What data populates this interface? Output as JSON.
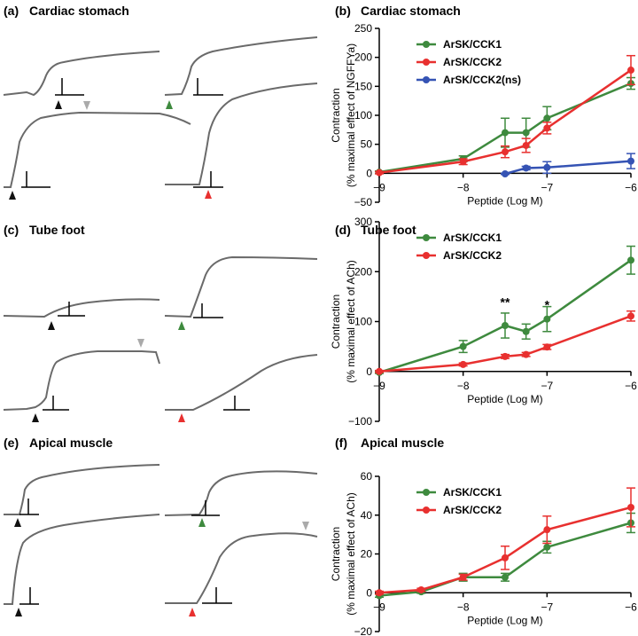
{
  "panels": {
    "a": {
      "letter": "(a)",
      "title": "Cardiac stomach"
    },
    "c": {
      "letter": "(c)",
      "title": "Tube foot"
    },
    "e": {
      "letter": "(e)",
      "title": "Apical muscle"
    }
  },
  "colors": {
    "ArSK/CCK1": "#3e8a3e",
    "ArSK/CCK2": "#e8302f",
    "ArSK/CCK2(ns)": "#3553b4",
    "control_arrow": "#111111",
    "washout_arrow": "#aaaaaa",
    "trace": "#6a6a6a"
  },
  "chart_data": [
    {
      "id": "b",
      "type": "line",
      "letter": "(b)",
      "title": "Cardiac stomach",
      "xlabel": "Peptide (Log M)",
      "ylabel_line1": "Contraction",
      "ylabel_line2": "(% maximal effect of NGFFYa)",
      "xlim": [
        -9,
        -6
      ],
      "ylim": [
        -50,
        250
      ],
      "xticks": [
        -9,
        -8,
        -7,
        -6
      ],
      "yticks": [
        -50,
        0,
        50,
        100,
        150,
        200,
        250
      ],
      "legend": "top-left",
      "series": [
        {
          "name": "ArSK/CCK1",
          "x": [
            -9,
            -8,
            -7.5,
            -7.25,
            -7,
            -6
          ],
          "y": [
            2,
            25,
            70,
            70,
            95,
            155
          ],
          "err": [
            2,
            5,
            25,
            25,
            20,
            10
          ]
        },
        {
          "name": "ArSK/CCK2",
          "x": [
            -9,
            -8,
            -7.5,
            -7.25,
            -7,
            -6
          ],
          "y": [
            1,
            20,
            37,
            48,
            78,
            178
          ],
          "err": [
            2,
            5,
            10,
            12,
            10,
            25
          ]
        },
        {
          "name": "ArSK/CCK2(ns)",
          "x": [
            -7.5,
            -7.25,
            -7,
            -6
          ],
          "y": [
            -1,
            9,
            10,
            21
          ],
          "err": [
            1,
            3,
            10,
            13
          ]
        }
      ]
    },
    {
      "id": "d",
      "type": "line",
      "letter": "(d)",
      "title": "Tube foot",
      "xlabel": "Peptide (Log M)",
      "ylabel_line1": "Contraction",
      "ylabel_line2": "(% maximal effect of ACh)",
      "xlim": [
        -9,
        -6
      ],
      "ylim": [
        -100,
        300
      ],
      "xticks": [
        -9,
        -8,
        -7,
        -6
      ],
      "yticks": [
        -100,
        0,
        100,
        200,
        300
      ],
      "legend": "top-left",
      "annotations": [
        {
          "text": "**",
          "x": -7.5,
          "y": 130
        },
        {
          "text": "*",
          "x": -7,
          "y": 125
        }
      ],
      "series": [
        {
          "name": "ArSK/CCK1",
          "x": [
            -9,
            -8,
            -7.5,
            -7.25,
            -7,
            -6
          ],
          "y": [
            -2,
            50,
            92,
            80,
            105,
            223
          ],
          "err": [
            2,
            12,
            25,
            15,
            25,
            28
          ]
        },
        {
          "name": "ArSK/CCK2",
          "x": [
            -9,
            -8,
            -7.5,
            -7.25,
            -7,
            -6
          ],
          "y": [
            0,
            14,
            30,
            34,
            49,
            111
          ],
          "err": [
            2,
            3,
            4,
            4,
            5,
            10
          ]
        }
      ]
    },
    {
      "id": "f",
      "type": "line",
      "letter": "(f)",
      "title": "Apical muscle",
      "xlabel": "Peptide (Log M)",
      "ylabel_line1": "Contraction",
      "ylabel_line2": "(% maximal effect of ACh)",
      "xlim": [
        -9,
        -6
      ],
      "ylim": [
        -20,
        60
      ],
      "xticks": [
        -9,
        -8,
        -7,
        -6
      ],
      "yticks": [
        -20,
        0,
        20,
        40,
        60
      ],
      "legend": "top-left",
      "series": [
        {
          "name": "ArSK/CCK1",
          "x": [
            -9,
            -8.5,
            -8,
            -7.5,
            -7,
            -6
          ],
          "y": [
            -1.5,
            0.5,
            8,
            8,
            23.5,
            36
          ],
          "err": [
            0.8,
            0.8,
            2,
            2,
            3,
            5
          ]
        },
        {
          "name": "ArSK/CCK2",
          "x": [
            -9,
            -8.5,
            -8,
            -7.5,
            -7,
            -6
          ],
          "y": [
            0,
            1.5,
            8,
            18,
            32.5,
            44
          ],
          "err": [
            0.8,
            0.8,
            1.5,
            6,
            7,
            10
          ]
        }
      ]
    }
  ]
}
